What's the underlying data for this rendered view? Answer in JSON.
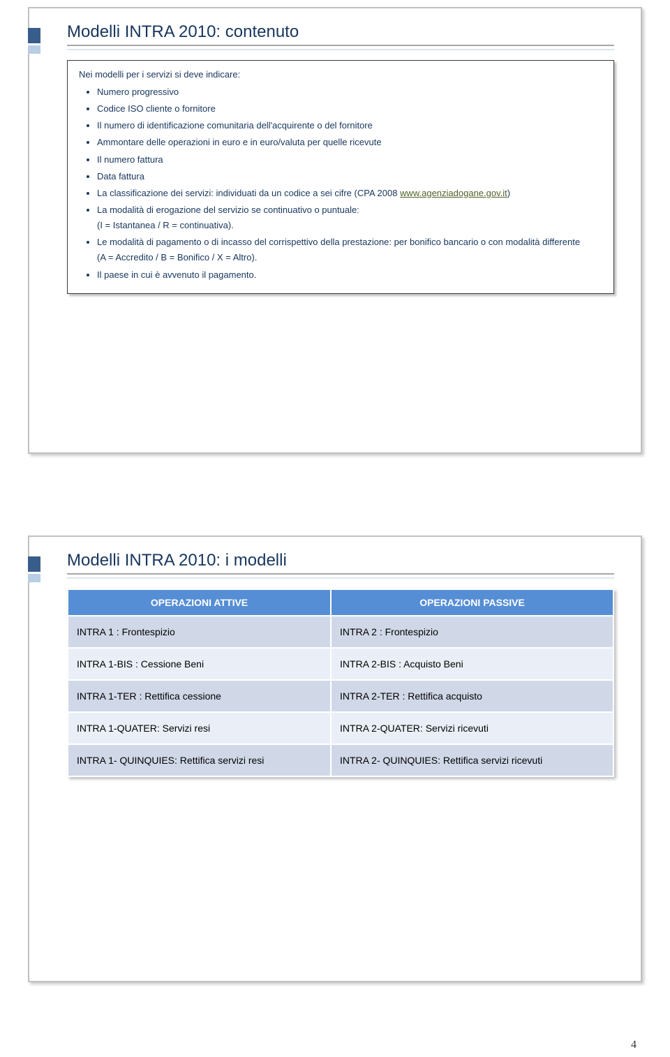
{
  "slide1": {
    "title": "Modelli INTRA 2010: contenuto",
    "intro": "Nei modelli per i servizi si deve indicare:",
    "items": [
      "Numero progressivo",
      "Codice ISO cliente o fornitore",
      "Il numero di identificazione comunitaria dell'acquirente o del fornitore",
      "Ammontare delle operazioni in euro e in euro/valuta per quelle ricevute",
      "Il numero fattura",
      "Data fattura"
    ],
    "item_cpa_pre": "La classificazione dei servizi: individuati da un codice a sei cifre (CPA 2008 ",
    "item_cpa_link": "www.agenziadogane.gov.it",
    "item_cpa_post": ")",
    "item_modalita": "La modalità di erogazione del servizio se continuativo o puntuale:",
    "item_modalita_sub": "(I = Istantanea / R = continuativa).",
    "item_pagamento": "Le modalità di pagamento o di incasso del corrispettivo della prestazione: per bonifico bancario o con modalità differente",
    "item_pagamento_sub": "(A = Accredito / B = Bonifico / X = Altro).",
    "item_paese": "Il paese in cui è avvenuto il pagamento."
  },
  "slide2": {
    "title": "Modelli INTRA 2010: i modelli",
    "table": {
      "headers": [
        "OPERAZIONI ATTIVE",
        "OPERAZIONI PASSIVE"
      ],
      "rows": [
        [
          "INTRA 1 :  Frontespizio",
          "INTRA 2 :  Frontespizio"
        ],
        [
          "INTRA 1-BIS : Cessione Beni",
          "INTRA 2-BIS : Acquisto  Beni"
        ],
        [
          "INTRA 1-TER : Rettifica cessione",
          "INTRA 2-TER : Rettifica  acquisto"
        ],
        [
          "INTRA 1-QUATER: Servizi resi",
          "INTRA 2-QUATER: Servizi ricevuti"
        ],
        [
          "INTRA 1- QUINQUIES: Rettifica servizi resi",
          "INTRA 2- QUINQUIES: Rettifica servizi ricevuti"
        ]
      ]
    }
  },
  "page_number": "4",
  "colors": {
    "title_text": "#17365d",
    "accent_dark": "#385d8a",
    "accent_light": "#b9cde5",
    "table_header_bg": "#558ed5",
    "table_row_light": "#eaeff7",
    "table_row_dark": "#d0d8e8",
    "link_color": "#4f6228"
  }
}
